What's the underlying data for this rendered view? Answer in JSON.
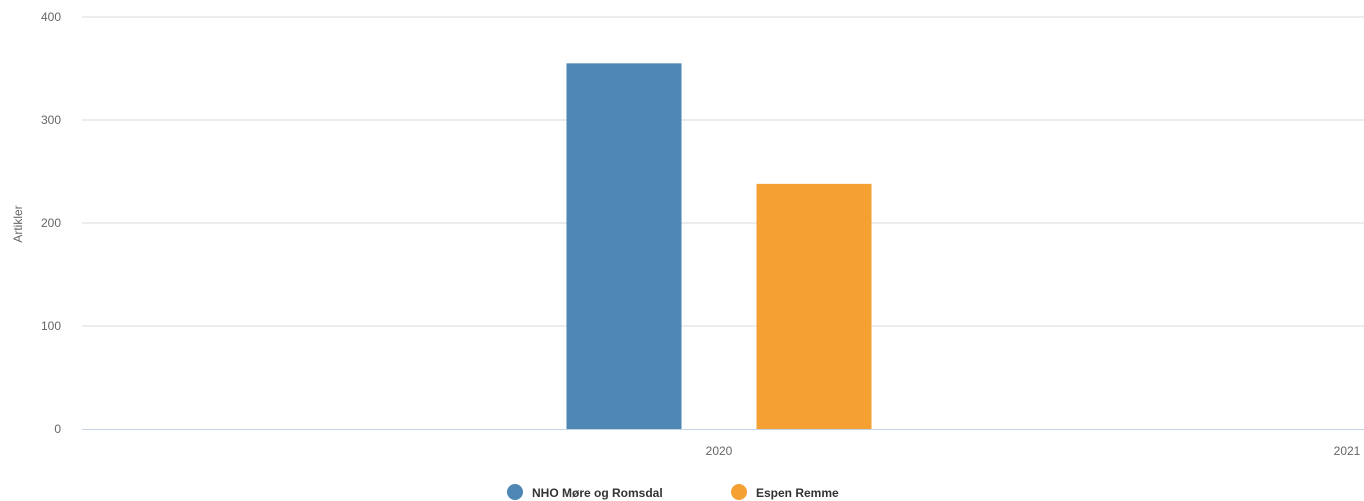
{
  "chart_data": {
    "type": "bar",
    "x": [
      "2020",
      "2021"
    ],
    "categories": [
      "2020"
    ],
    "ylabel": "Artikler",
    "ylim": [
      0,
      400
    ],
    "yticks": [
      0,
      100,
      200,
      300,
      400
    ],
    "grid": true,
    "legend_position": "bottom-center",
    "series": [
      {
        "name": "NHO Møre og Romsdal",
        "values": [
          355
        ],
        "color": "#4e86b4"
      },
      {
        "name": "Espen Remme",
        "values": [
          238
        ],
        "color": "#f5a033"
      }
    ]
  }
}
